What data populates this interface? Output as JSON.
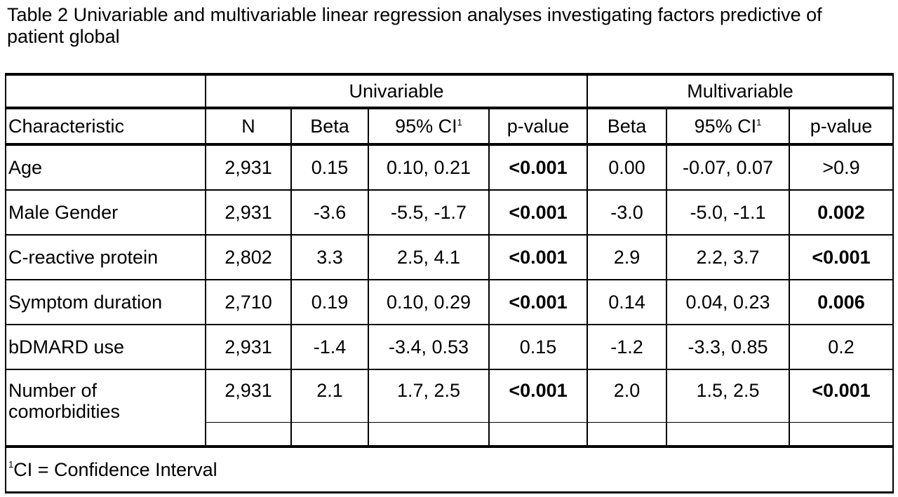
{
  "title": "Table 2 Univariable and multivariable linear regression analyses investigating factors predictive of patient global",
  "table": {
    "groups": {
      "univariable": "Univariable",
      "multivariable": "Multivariable"
    },
    "headers": {
      "characteristic": "Characteristic",
      "n": "N",
      "uni_beta": "Beta",
      "uni_ci": "95% CI",
      "uni_ci_sup": "1",
      "uni_p": "p-value",
      "multi_beta": "Beta",
      "multi_ci": "95% CI",
      "multi_ci_sup": "1",
      "multi_p": "p-value"
    },
    "rows": [
      {
        "characteristic": "Age",
        "n": "2,931",
        "uni_beta": "0.15",
        "uni_ci": "0.10, 0.21",
        "uni_p": "<0.001",
        "uni_p_bold": true,
        "multi_beta": "0.00",
        "multi_ci": "-0.07, 0.07",
        "multi_p": ">0.9",
        "multi_p_bold": false
      },
      {
        "characteristic": "Male Gender",
        "n": "2,931",
        "uni_beta": "-3.6",
        "uni_ci": "-5.5, -1.7",
        "uni_p": "<0.001",
        "uni_p_bold": true,
        "multi_beta": "-3.0",
        "multi_ci": "-5.0, -1.1",
        "multi_p": "0.002",
        "multi_p_bold": true
      },
      {
        "characteristic": "C-reactive protein",
        "n": "2,802",
        "uni_beta": "3.3",
        "uni_ci": "2.5, 4.1",
        "uni_p": "<0.001",
        "uni_p_bold": true,
        "multi_beta": "2.9",
        "multi_ci": "2.2, 3.7",
        "multi_p": "<0.001",
        "multi_p_bold": true
      },
      {
        "characteristic": "Symptom duration",
        "n": "2,710",
        "uni_beta": "0.19",
        "uni_ci": "0.10, 0.29",
        "uni_p": "<0.001",
        "uni_p_bold": true,
        "multi_beta": "0.14",
        "multi_ci": "0.04, 0.23",
        "multi_p": "0.006",
        "multi_p_bold": true
      },
      {
        "characteristic": "bDMARD use",
        "n": "2,931",
        "uni_beta": "-1.4",
        "uni_ci": "-3.4, 0.53",
        "uni_p": "0.15",
        "uni_p_bold": false,
        "multi_beta": "-1.2",
        "multi_ci": "-3.3, 0.85",
        "multi_p": "0.2",
        "multi_p_bold": false
      },
      {
        "characteristic": "Number of comorbidities",
        "n": "2,931",
        "uni_beta": "2.1",
        "uni_ci": "1.7, 2.5",
        "uni_p": "<0.001",
        "uni_p_bold": true,
        "multi_beta": "2.0",
        "multi_ci": "1.5, 2.5",
        "multi_p": "<0.001",
        "multi_p_bold": true
      }
    ],
    "footnote": {
      "sup": "1",
      "text": "CI = Confidence Interval"
    }
  }
}
